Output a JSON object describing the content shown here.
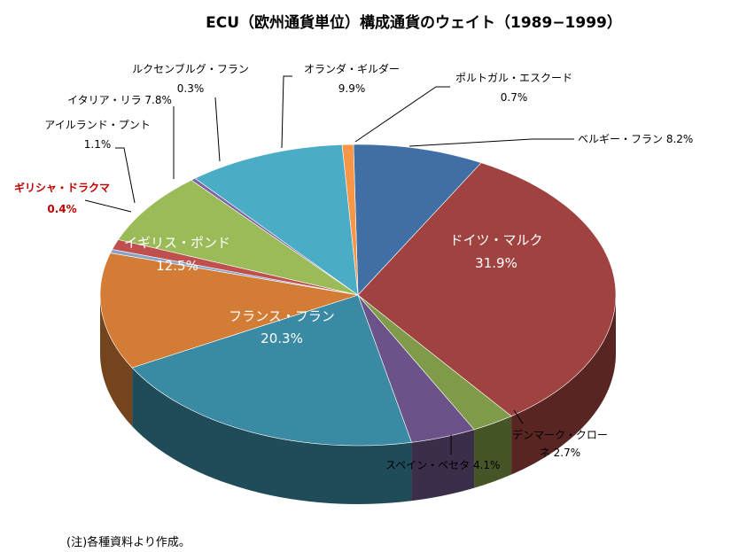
{
  "chart_data": {
    "type": "pie",
    "title": "ECU（欧州通貨単位）構成通貨のウェイト（1989−1999）",
    "unit": "%",
    "slices": [
      {
        "name": "ベルギー・フラン",
        "value": 8.2,
        "value_label": "8.2%",
        "color": "#3f6fa5"
      },
      {
        "name": "ドイツ・マルク",
        "value": 31.9,
        "value_label": "31.9%",
        "color": "#a04340"
      },
      {
        "name": "デンマーク・クローネ",
        "value": 2.7,
        "value_label": "2.7%",
        "color": "#7f9a48"
      },
      {
        "name": "スペイン・ペセタ",
        "value": 4.1,
        "value_label": "4.1%",
        "color": "#6b5389"
      },
      {
        "name": "フランス・フラン",
        "value": 20.3,
        "value_label": "20.3%",
        "color": "#3a8aa3"
      },
      {
        "name": "イギリス・ポンド",
        "value": 12.5,
        "value_label": "12.5%",
        "color": "#d37c35"
      },
      {
        "name": "ギリシャ・ドラクマ",
        "value": 0.4,
        "value_label": "0.4%",
        "color": "#8aa4c8"
      },
      {
        "name": "アイルランド・プント",
        "value": 1.1,
        "value_label": "1.1%",
        "color": "#c0504d"
      },
      {
        "name": "イタリア・リラ",
        "value": 7.8,
        "value_label": "7.8%",
        "color": "#9bbb59"
      },
      {
        "name": "ルクセンブルグ・フラン",
        "value": 0.3,
        "value_label": "0.3%",
        "color": "#8064a2"
      },
      {
        "name": "オランダ・ギルダー",
        "value": 9.9,
        "value_label": "9.9%",
        "color": "#4bacc6"
      },
      {
        "name": "ポルトガル・エスクード",
        "value": 0.7,
        "value_label": "0.7%",
        "color": "#f79646"
      }
    ],
    "highlight": "ギリシャ・ドラクマ"
  },
  "labels": {
    "belgium": "ベルギー・フラン 8.2%",
    "germany_name": "ドイツ・マルク",
    "germany_value": "31.9%",
    "denmark_line1": "デンマーク・クロー",
    "denmark_line2": "ネ 2.7%",
    "spain": "スペイン・ペセタ 4.1%",
    "france_name": "フランス・フラン",
    "france_value": "20.3%",
    "uk_name": "イギリス・ポンド",
    "uk_value": "12.5%",
    "greece_name": "ギリシャ・ドラクマ",
    "greece_value": "0.4%",
    "ireland_name": "アイルランド・プント",
    "ireland_value": "1.1%",
    "italy": "イタリア・リラ 7.8%",
    "luxembourg_name": "ルクセンブルグ・フラン",
    "luxembourg_value": "0.3%",
    "netherlands_name": "オランダ・ギルダー",
    "netherlands_value": "9.9%",
    "portugal_name": "ポルトガル・エスクード",
    "portugal_value": "0.7%"
  },
  "footnote": "(注)各種資料より作成。"
}
